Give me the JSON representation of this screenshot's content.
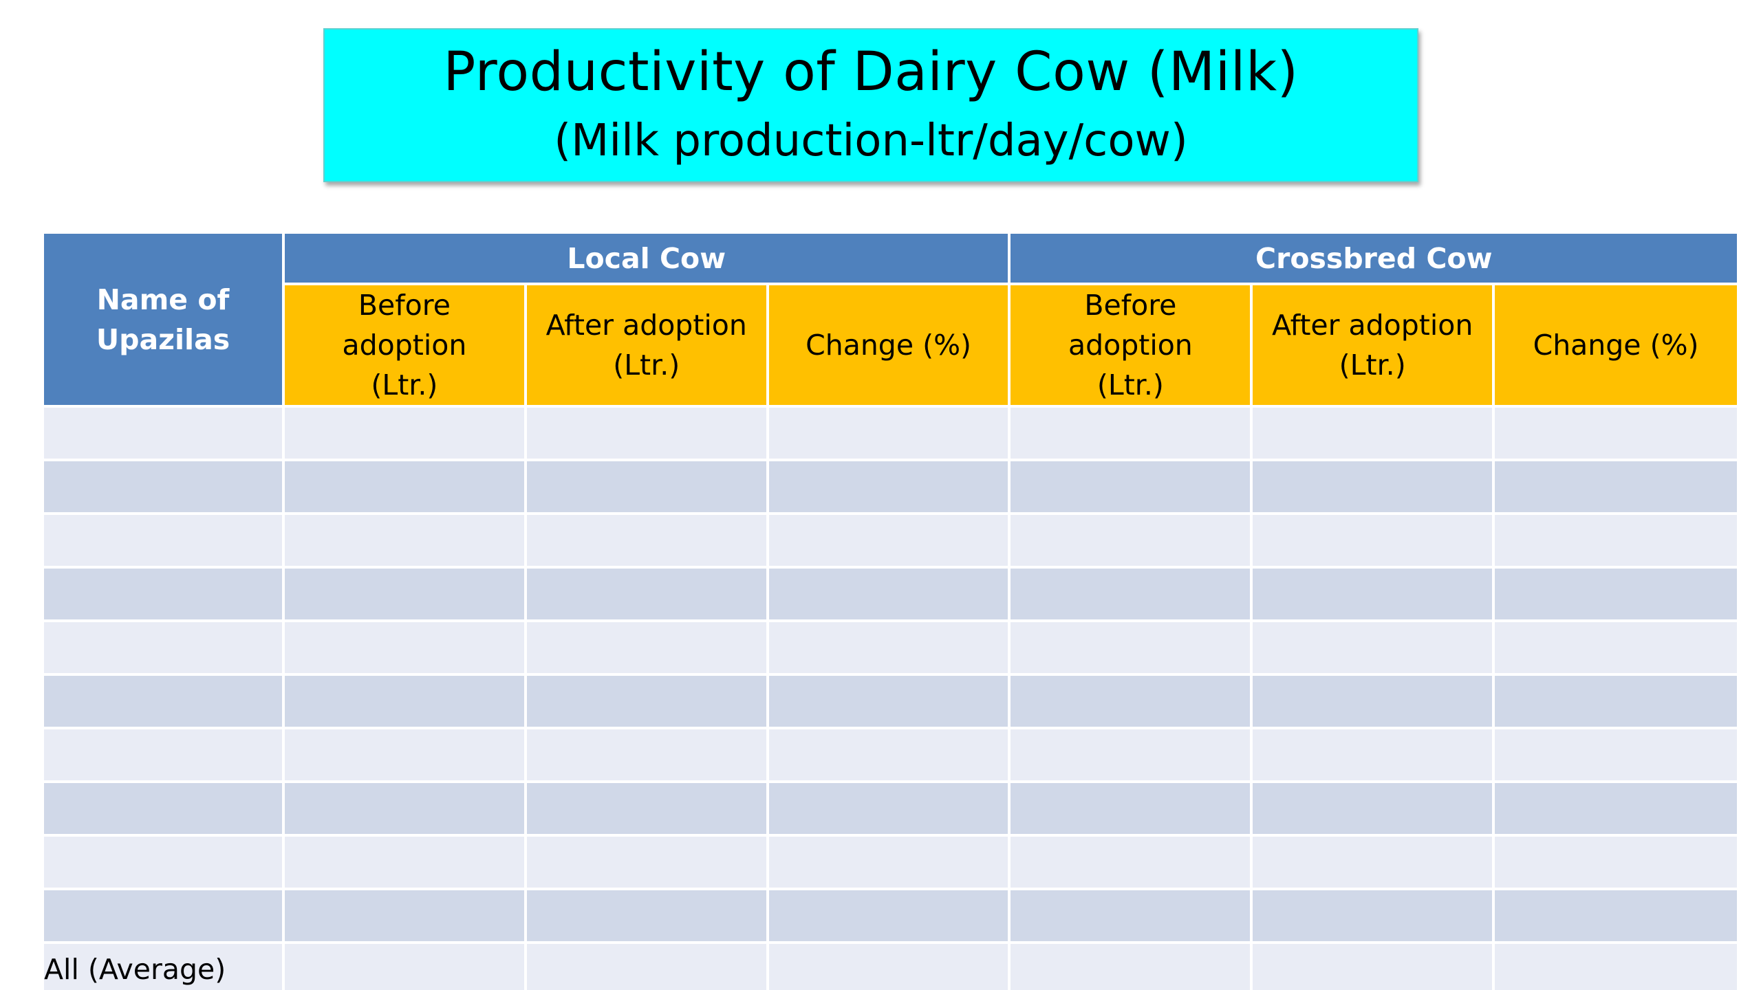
{
  "title": {
    "line1": "Productivity of Dairy Cow (Milk)",
    "line2": "(Milk production-ltr/day/cow)"
  },
  "table": {
    "row_header": "Name of Upazilas",
    "groups": [
      "Local Cow",
      "Crossbred Cow"
    ],
    "sub_columns": [
      "Before adoption (Ltr.)",
      "After adoption (Ltr.)",
      "Change (%)",
      "Before adoption (Ltr.)",
      "After adoption (Ltr.)",
      "Change (%)"
    ],
    "rows": [
      [
        "",
        "",
        "",
        "",
        "",
        "",
        ""
      ],
      [
        "",
        "",
        "",
        "",
        "",
        "",
        ""
      ],
      [
        "",
        "",
        "",
        "",
        "",
        "",
        ""
      ],
      [
        "",
        "",
        "",
        "",
        "",
        "",
        ""
      ],
      [
        "",
        "",
        "",
        "",
        "",
        "",
        ""
      ],
      [
        "",
        "",
        "",
        "",
        "",
        "",
        ""
      ],
      [
        "",
        "",
        "",
        "",
        "",
        "",
        ""
      ],
      [
        "",
        "",
        "",
        "",
        "",
        "",
        ""
      ],
      [
        "",
        "",
        "",
        "",
        "",
        "",
        ""
      ],
      [
        "",
        "",
        "",
        "",
        "",
        "",
        ""
      ]
    ],
    "summary_label": "All (Average)"
  },
  "colors": {
    "title_bg": "#00ffff",
    "header_blue": "#4f81bd",
    "subheader_orange": "#ffc000",
    "row_light": "#e9ecf5",
    "row_dark": "#d0d8e8"
  }
}
